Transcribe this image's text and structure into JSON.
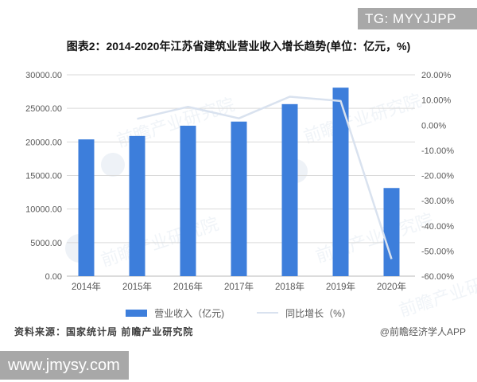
{
  "banners": {
    "top": "TG: MYYJJPP",
    "bottom": "www.jmysy.com"
  },
  "title": "图表2：2014-2020年江苏省建筑业营业收入增长趋势(单位：亿元，%)",
  "legend": {
    "bar_label": "营业收入（亿元)",
    "line_label": "同比增长（%）"
  },
  "footer": {
    "source": "资料来源：国家统计局 前瞻产业研究院",
    "credit": "@前瞻经济学人APP"
  },
  "watermark": {
    "text": "前瞻产业研究院",
    "logo": "puzzle-circle-logo"
  },
  "theme": {
    "bar_color": "#3d7edb",
    "line_color": "#d9e2ef",
    "grid_color": "#d9d9d9",
    "baseline_color": "#b9b9b9",
    "axis_text_color": "#595959",
    "banner_bg": "#a8a8a8",
    "watermark_color": "#a9bdd6"
  },
  "chart_data": {
    "type": "bar",
    "subtype": "bar-line-combo",
    "title": "图表2：2014-2020年江苏省建筑业营业收入增长趋势(单位：亿元，%)",
    "categories": [
      "2014年",
      "2015年",
      "2016年",
      "2017年",
      "2018年",
      "2019年",
      "2020年"
    ],
    "series": [
      {
        "name": "营业收入（亿元)",
        "type": "bar",
        "axis": "left",
        "color": "#3d7edb",
        "values": [
          20377,
          20886,
          22416,
          23031,
          25633,
          28088,
          13133
        ]
      },
      {
        "name": "同比增长（%）",
        "type": "line",
        "axis": "right",
        "color": "#d9e2ef",
        "values": [
          null,
          2.5,
          7.3,
          2.7,
          11.3,
          9.6,
          -53.2
        ]
      }
    ],
    "left_axis": {
      "min": 0,
      "max": 30000,
      "ticks": [
        "30000.00",
        "25000.00",
        "20000.00",
        "15000.00",
        "10000.00",
        "5000.00",
        "0.00"
      ]
    },
    "right_axis": {
      "min": -60,
      "max": 20,
      "ticks": [
        "20.00%",
        "10.00%",
        "0.00%",
        "-10.00%",
        "-20.00%",
        "-30.00%",
        "-40.00%",
        "-50.00%",
        "-60.00%"
      ]
    },
    "grid": true,
    "legend_position": "bottom"
  }
}
